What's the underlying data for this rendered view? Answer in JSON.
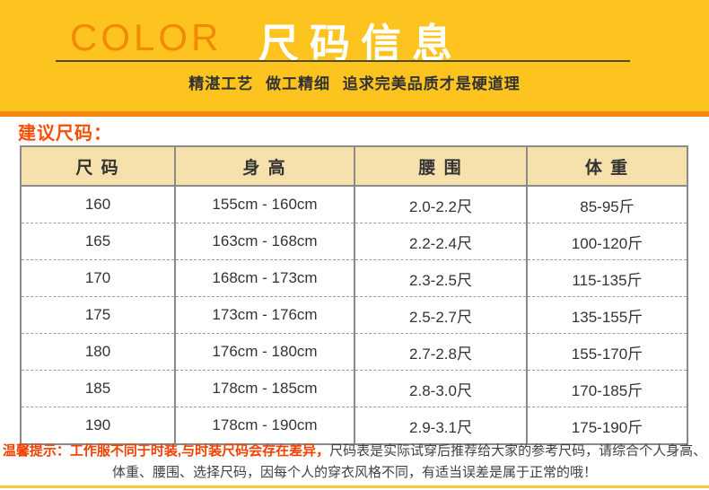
{
  "header": {
    "brand": "COLOR",
    "title": "尺码信息",
    "subtitle": "精湛工艺 做工精细 追求完美品质才是硬道理"
  },
  "section_label": "建议尺码：",
  "table": {
    "columns": [
      "尺 码",
      "身 高",
      "腰 围",
      "体 重"
    ],
    "rows": [
      [
        "160",
        "155cm - 160cm",
        "2.0-2.2尺",
        "85-95斤"
      ],
      [
        "165",
        "163cm - 168cm",
        "2.2-2.4尺",
        "100-120斤"
      ],
      [
        "170",
        "168cm - 173cm",
        "2.3-2.5尺",
        "115-135斤"
      ],
      [
        "175",
        "173cm - 176cm",
        "2.5-2.7尺",
        "135-155斤"
      ],
      [
        "180",
        "176cm - 180cm",
        "2.7-2.8尺",
        "155-170斤"
      ],
      [
        "185",
        "178cm - 185cm",
        "2.8-3.0尺",
        "170-185斤"
      ],
      [
        "190",
        "178cm - 190cm",
        "2.9-3.1尺",
        "175-190斤"
      ]
    ]
  },
  "footer_note": {
    "highlight": "温馨提示：工作服不同于时装,与时装尺码会存在差异，",
    "line1_rest": "尺码表是实际试穿后推荐给大家的参考尺码，请综合个人身高、",
    "line2": "体重、腰围、选择尺码，因每个人的穿衣风格不同，有适当误差是属于正常的哦！"
  },
  "colors": {
    "band_yellow": "#fdc41f",
    "band_orange_strip": "#f6870f",
    "brand_orange": "#f28a06",
    "title_white": "#ffffff",
    "section_label_orange": "#fb4e04",
    "table_header_bg": "#f6e0ac",
    "table_border_gray": "#8a8a8a",
    "note_red": "#f44000",
    "bottom_strip_yellow": "#fcc63d"
  }
}
